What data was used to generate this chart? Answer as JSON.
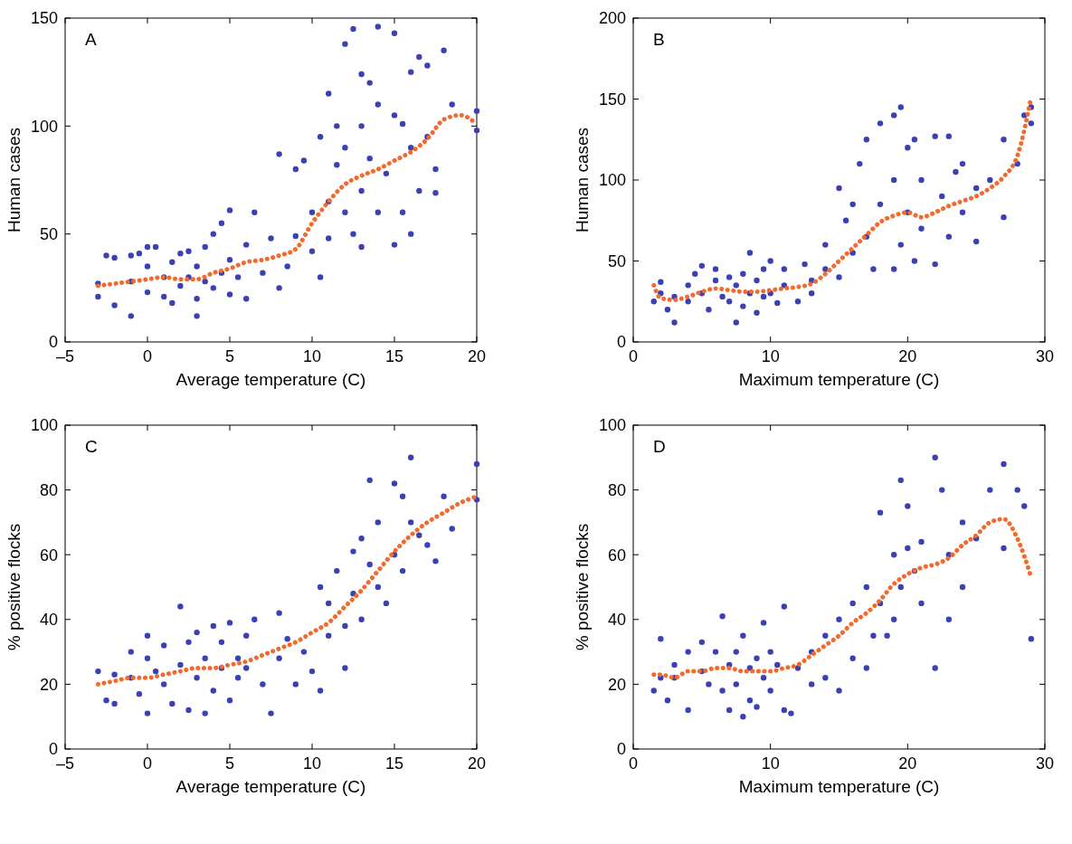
{
  "chart_data": [
    {
      "type": "scatter",
      "annotations": [
        "A"
      ],
      "xlabel": "Average temperature (C)",
      "ylabel": "Human cases",
      "xlim": [
        -5,
        20
      ],
      "xticks": [
        {
          "value": -5,
          "label": "–5"
        },
        0,
        5,
        10,
        15,
        20
      ],
      "ylim": [
        0,
        150
      ],
      "yticks": [
        0,
        50,
        100,
        150
      ],
      "grid": false,
      "series": [
        {
          "marker": "circle",
          "color": "#3b40b4",
          "x": [
            -3,
            -3,
            -2.5,
            -2,
            -2,
            -1,
            -1,
            -1,
            -0.5,
            0,
            0,
            0,
            0.5,
            1,
            1,
            1.5,
            1.5,
            2,
            2,
            2.5,
            2.5,
            3,
            3,
            3,
            3.5,
            3.5,
            4,
            4,
            4.5,
            4.5,
            5,
            5,
            5,
            5.5,
            6,
            6,
            6.5,
            7,
            7.5,
            8,
            8,
            8.5,
            9,
            9,
            9.5,
            10,
            10,
            10.5,
            10.5,
            11,
            11,
            11,
            11.5,
            11.5,
            12,
            12,
            12,
            12.5,
            12.5,
            13,
            13,
            13,
            13,
            13.5,
            13.5,
            14,
            14,
            14,
            14.5,
            15,
            15,
            15,
            15.5,
            15.5,
            16,
            16,
            16,
            16.5,
            16.5,
            17,
            17,
            17.5,
            17.5,
            18,
            18.5,
            20,
            20
          ],
          "values": [
            21,
            27,
            40,
            39,
            17,
            12,
            40,
            28,
            41,
            35,
            23,
            44,
            44,
            30,
            21,
            37,
            18,
            41,
            26,
            30,
            42,
            12,
            35,
            20,
            28,
            44,
            50,
            25,
            32,
            55,
            38,
            22,
            61,
            30,
            45,
            20,
            60,
            32,
            48,
            87,
            25,
            35,
            49,
            80,
            84,
            60,
            42,
            30,
            95,
            115,
            65,
            48,
            82,
            100,
            138,
            60,
            90,
            145,
            50,
            124,
            70,
            100,
            44,
            120,
            85,
            146,
            60,
            110,
            78,
            143,
            45,
            105,
            101,
            60,
            125,
            90,
            50,
            132,
            70,
            128,
            95,
            69,
            80,
            135,
            110,
            107,
            98
          ]
        },
        {
          "type": "line",
          "line_style": "dotted",
          "color": "#f26a2e",
          "x": [
            -3,
            -2,
            -1,
            0,
            1,
            2,
            3,
            4,
            5,
            6,
            7,
            8,
            9,
            10,
            11,
            12,
            13,
            14,
            15,
            16,
            17,
            18,
            19,
            20
          ],
          "values": [
            26,
            27,
            28,
            29,
            30,
            29,
            29,
            32,
            34,
            37,
            38,
            40,
            43,
            55,
            65,
            73,
            77,
            80,
            84,
            88,
            94,
            103,
            105,
            101
          ]
        }
      ]
    },
    {
      "type": "scatter",
      "annotations": [
        "B"
      ],
      "xlabel": "Maximum temperature (C)",
      "ylabel": "Human cases",
      "xlim": [
        0,
        30
      ],
      "xticks": [
        0,
        10,
        20,
        30
      ],
      "ylim": [
        0,
        200
      ],
      "yticks": [
        0,
        50,
        100,
        150,
        200
      ],
      "grid": false,
      "series": [
        {
          "marker": "circle",
          "color": "#3b40b4",
          "x": [
            1.5,
            2,
            2,
            2.5,
            3,
            3,
            4,
            4,
            4.5,
            5,
            5,
            5.5,
            6,
            6,
            6.5,
            7,
            7,
            7.5,
            7.5,
            8,
            8,
            8.5,
            8.5,
            9,
            9,
            9.5,
            9.5,
            10,
            10,
            10.5,
            11,
            11,
            12,
            12.5,
            13,
            13,
            14,
            14,
            15,
            15,
            15.5,
            16,
            16,
            16.5,
            17,
            17,
            17.5,
            18,
            18,
            19,
            19,
            19,
            19.5,
            19.5,
            20,
            20,
            20.5,
            20.5,
            21,
            21,
            22,
            22,
            22.5,
            23,
            23,
            23.5,
            24,
            24,
            25,
            25,
            26,
            27,
            27,
            28,
            28.5,
            29,
            29
          ],
          "values": [
            25,
            30,
            37,
            20,
            12,
            28,
            35,
            25,
            42,
            47,
            30,
            20,
            38,
            45,
            28,
            40,
            25,
            12,
            35,
            42,
            22,
            30,
            55,
            38,
            18,
            45,
            28,
            50,
            30,
            24,
            35,
            45,
            25,
            48,
            38,
            30,
            60,
            45,
            95,
            40,
            75,
            85,
            55,
            110,
            125,
            65,
            45,
            135,
            85,
            140,
            100,
            45,
            145,
            60,
            120,
            80,
            125,
            50,
            100,
            70,
            127,
            48,
            90,
            127,
            65,
            105,
            110,
            80,
            95,
            62,
            100,
            125,
            77,
            110,
            140,
            145,
            135
          ]
        },
        {
          "type": "line",
          "line_style": "dotted",
          "color": "#f26a2e",
          "x": [
            1.5,
            2,
            3,
            4,
            5,
            6,
            7,
            8,
            9,
            10,
            11,
            12,
            13,
            14,
            15,
            16,
            17,
            18,
            19,
            20,
            21,
            22,
            23,
            24,
            25,
            26,
            27,
            28,
            29
          ],
          "values": [
            35,
            27,
            26,
            28,
            31,
            33,
            32,
            31,
            31,
            32,
            33,
            34,
            36,
            42,
            50,
            58,
            66,
            74,
            78,
            80,
            77,
            80,
            84,
            87,
            90,
            95,
            102,
            115,
            151
          ]
        }
      ]
    },
    {
      "type": "scatter",
      "annotations": [
        "C"
      ],
      "xlabel": "Average temperature (C)",
      "ylabel": "% positive flocks",
      "xlim": [
        -5,
        20
      ],
      "xticks": [
        {
          "value": -5,
          "label": "–5"
        },
        0,
        5,
        10,
        15,
        20
      ],
      "ylim": [
        0,
        100
      ],
      "yticks": [
        0,
        20,
        40,
        60,
        80,
        100
      ],
      "grid": false,
      "series": [
        {
          "marker": "circle",
          "color": "#3b40b4",
          "x": [
            -3,
            -2.5,
            -2,
            -2,
            -1,
            -1,
            -0.5,
            0,
            0,
            0,
            0.5,
            1,
            1,
            1.5,
            2,
            2,
            2.5,
            2.5,
            3,
            3,
            3.5,
            3.5,
            4,
            4,
            4.5,
            4.5,
            5,
            5,
            5.5,
            5.5,
            6,
            6,
            6.5,
            7,
            7.5,
            8,
            8,
            8.5,
            9,
            9.5,
            10,
            10.5,
            10.5,
            11,
            11,
            11.5,
            12,
            12,
            12.5,
            12.5,
            13,
            13,
            13.5,
            13.5,
            14,
            14,
            14.5,
            15,
            15,
            15.5,
            15.5,
            16,
            16,
            16.5,
            17,
            17.5,
            18,
            18.5,
            20,
            20
          ],
          "values": [
            24,
            15,
            14,
            23,
            30,
            22,
            17,
            28,
            11,
            35,
            24,
            20,
            32,
            14,
            44,
            26,
            12,
            33,
            22,
            36,
            28,
            11,
            38,
            18,
            25,
            33,
            39,
            15,
            28,
            22,
            35,
            25,
            40,
            20,
            11,
            42,
            28,
            34,
            20,
            30,
            24,
            50,
            18,
            35,
            45,
            55,
            38,
            25,
            61,
            48,
            65,
            40,
            83,
            57,
            50,
            70,
            45,
            82,
            60,
            78,
            55,
            90,
            70,
            66,
            63,
            58,
            78,
            68,
            88,
            77
          ]
        },
        {
          "type": "line",
          "line_style": "dotted",
          "color": "#f26a2e",
          "x": [
            -3,
            -2,
            -1,
            0,
            1,
            2,
            3,
            4,
            5,
            6,
            7,
            8,
            9,
            10,
            11,
            12,
            13,
            14,
            15,
            16,
            17,
            18,
            19,
            20
          ],
          "values": [
            20,
            21,
            22,
            22,
            23,
            24,
            25,
            25,
            26,
            27,
            29,
            31,
            33,
            36,
            39,
            44,
            49,
            55,
            61,
            66,
            70,
            73,
            76,
            78
          ]
        }
      ]
    },
    {
      "type": "scatter",
      "annotations": [
        "D"
      ],
      "xlabel": "Maximum temperature (C)",
      "ylabel": "% positive flocks",
      "xlim": [
        0,
        30
      ],
      "xticks": [
        0,
        10,
        20,
        30
      ],
      "ylim": [
        0,
        100
      ],
      "yticks": [
        0,
        20,
        40,
        60,
        80,
        100
      ],
      "grid": false,
      "series": [
        {
          "marker": "circle",
          "color": "#3b40b4",
          "x": [
            1.5,
            2,
            2,
            2.5,
            3,
            3,
            4,
            4,
            5,
            5,
            5.5,
            6,
            6.5,
            6.5,
            7,
            7,
            7.5,
            7.5,
            8,
            8,
            8.5,
            8.5,
            9,
            9,
            9.5,
            9.5,
            10,
            10,
            10.5,
            11,
            11,
            11.5,
            12,
            13,
            13,
            14,
            14,
            15,
            15,
            16,
            16,
            17,
            17,
            17.5,
            18,
            18,
            18.5,
            19,
            19,
            19.5,
            19.5,
            20,
            20,
            20.5,
            21,
            21,
            22,
            22,
            22.5,
            23,
            23,
            24,
            24,
            25,
            26,
            27,
            27,
            28,
            28.5,
            29
          ],
          "values": [
            18,
            22,
            34,
            15,
            26,
            22,
            12,
            30,
            24,
            33,
            20,
            30,
            41,
            18,
            26,
            12,
            30,
            20,
            35,
            10,
            25,
            15,
            28,
            13,
            39,
            22,
            30,
            18,
            26,
            44,
            12,
            11,
            25,
            30,
            20,
            35,
            22,
            40,
            18,
            45,
            28,
            50,
            25,
            35,
            73,
            45,
            35,
            60,
            40,
            83,
            50,
            75,
            62,
            55,
            64,
            45,
            90,
            25,
            80,
            60,
            40,
            70,
            50,
            65,
            80,
            88,
            62,
            80,
            75,
            34
          ]
        },
        {
          "type": "line",
          "line_style": "dotted",
          "color": "#f26a2e",
          "x": [
            1.5,
            2,
            3,
            4,
            5,
            6,
            7,
            8,
            9,
            10,
            11,
            12,
            13,
            14,
            15,
            16,
            17,
            18,
            19,
            20,
            21,
            22,
            23,
            24,
            25,
            26,
            27,
            28,
            29
          ],
          "values": [
            23,
            23,
            22,
            24,
            24,
            25,
            25,
            24,
            24,
            24,
            25,
            26,
            29,
            32,
            35,
            39,
            42,
            46,
            51,
            54,
            56,
            57,
            59,
            63,
            66,
            70,
            71,
            65,
            53
          ]
        }
      ]
    }
  ]
}
